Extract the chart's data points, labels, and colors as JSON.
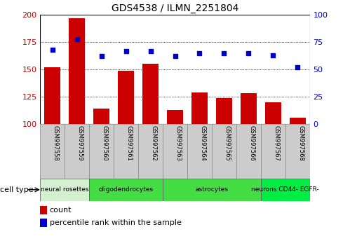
{
  "title": "GDS4538 / ILMN_2251804",
  "samples": [
    "GSM997558",
    "GSM997559",
    "GSM997560",
    "GSM997561",
    "GSM997562",
    "GSM997563",
    "GSM997564",
    "GSM997565",
    "GSM997566",
    "GSM997567",
    "GSM997568"
  ],
  "counts": [
    152,
    197,
    114,
    149,
    155,
    113,
    129,
    124,
    128,
    120,
    106
  ],
  "percentiles": [
    68,
    78,
    62,
    67,
    67,
    62,
    65,
    65,
    65,
    63,
    52
  ],
  "ylim_left": [
    100,
    200
  ],
  "ylim_right": [
    0,
    100
  ],
  "yticks_left": [
    100,
    125,
    150,
    175,
    200
  ],
  "yticks_right": [
    0,
    25,
    50,
    75,
    100
  ],
  "bar_color": "#cc0000",
  "dot_color": "#0000cc",
  "cell_groups": [
    {
      "label": "neural rosettes",
      "start": 0,
      "end": 2,
      "color": "#d4f0d0"
    },
    {
      "label": "oligodendrocytes",
      "start": 2,
      "end": 5,
      "color": "#44dd44"
    },
    {
      "label": "astrocytes",
      "start": 5,
      "end": 9,
      "color": "#44dd44"
    },
    {
      "label": "neurons CD44- EGFR-",
      "start": 9,
      "end": 11,
      "color": "#00ee44"
    }
  ],
  "cell_type_label": "cell type",
  "legend_count": "count",
  "legend_percentile": "percentile rank within the sample"
}
